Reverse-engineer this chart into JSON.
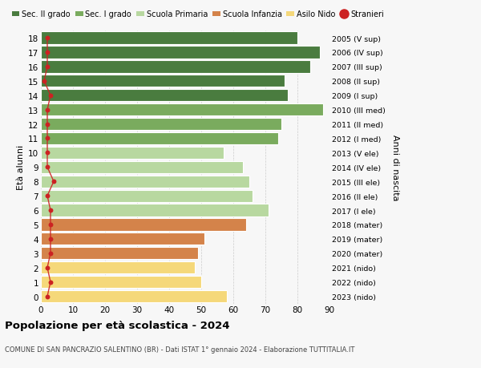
{
  "ages": [
    18,
    17,
    16,
    15,
    14,
    13,
    12,
    11,
    10,
    9,
    8,
    7,
    6,
    5,
    4,
    3,
    2,
    1,
    0
  ],
  "right_labels": [
    "2005 (V sup)",
    "2006 (IV sup)",
    "2007 (III sup)",
    "2008 (II sup)",
    "2009 (I sup)",
    "2010 (III med)",
    "2011 (II med)",
    "2012 (I med)",
    "2013 (V ele)",
    "2014 (IV ele)",
    "2015 (III ele)",
    "2016 (II ele)",
    "2017 (I ele)",
    "2018 (mater)",
    "2019 (mater)",
    "2020 (mater)",
    "2021 (nido)",
    "2022 (nido)",
    "2023 (nido)"
  ],
  "bar_values": [
    80,
    87,
    84,
    76,
    77,
    88,
    75,
    74,
    57,
    63,
    65,
    66,
    71,
    64,
    51,
    49,
    48,
    50,
    58
  ],
  "bar_colors": [
    "#4a7c3f",
    "#4a7c3f",
    "#4a7c3f",
    "#4a7c3f",
    "#4a7c3f",
    "#7aab5e",
    "#7aab5e",
    "#7aab5e",
    "#b8d8a0",
    "#b8d8a0",
    "#b8d8a0",
    "#b8d8a0",
    "#b8d8a0",
    "#d4834a",
    "#d4834a",
    "#d4834a",
    "#f5d87a",
    "#f5d87a",
    "#f5d87a"
  ],
  "stranieri_values": [
    2,
    2,
    2,
    1,
    3,
    2,
    2,
    2,
    2,
    2,
    4,
    2,
    3,
    3,
    3,
    3,
    2,
    3,
    2
  ],
  "legend_labels": [
    "Sec. II grado",
    "Sec. I grado",
    "Scuola Primaria",
    "Scuola Infanzia",
    "Asilo Nido",
    "Stranieri"
  ],
  "legend_colors": [
    "#4a7c3f",
    "#7aab5e",
    "#b8d8a0",
    "#d4834a",
    "#f5d87a",
    "#cc2222"
  ],
  "ylabel_left": "Età alunni",
  "ylabel_right": "Anni di nascita",
  "title": "Popolazione per età scolastica - 2024",
  "subtitle": "COMUNE DI SAN PANCRAZIO SALENTINO (BR) - Dati ISTAT 1° gennaio 2024 - Elaborazione TUTTITALIA.IT",
  "xlim_max": 90,
  "xticks": [
    0,
    10,
    20,
    30,
    40,
    50,
    60,
    70,
    80,
    90
  ],
  "bg_color": "#f7f7f7",
  "grid_color": "#cccccc",
  "bar_edge_color": "#ffffff"
}
